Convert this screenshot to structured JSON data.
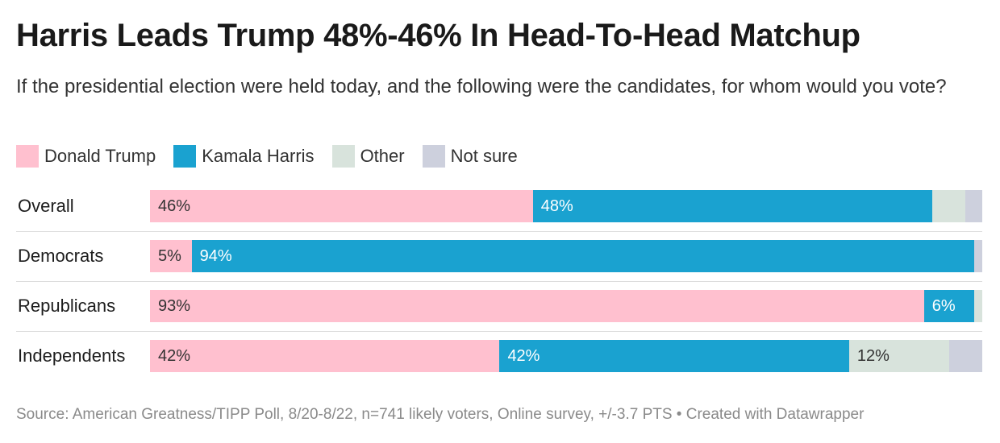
{
  "title": "Harris Leads Trump 48%-46% In Head-To-Head Matchup",
  "subtitle": "If the presidential election were held today, and the following were the candidates, for whom would you vote?",
  "footer": "Source: American Greatness/TIPP Poll, 8/20-8/22, n=741 likely voters, Online survey, +/-3.7 PTS • Created with Datawrapper",
  "colors": {
    "trump": "#ffc0cf",
    "harris": "#1aa2d0",
    "other": "#d8e3dc",
    "not_sure": "#cdd0dd"
  },
  "chart_data": {
    "type": "bar",
    "orientation": "horizontal",
    "stacked": true,
    "categories": [
      "Overall",
      "Democrats",
      "Republicans",
      "Independents"
    ],
    "series": [
      {
        "name": "Donald Trump",
        "values": [
          46,
          5,
          93,
          42
        ],
        "labels": [
          "46%",
          "5%",
          "93%",
          "42%"
        ]
      },
      {
        "name": "Kamala Harris",
        "values": [
          48,
          94,
          6,
          42
        ],
        "labels": [
          "48%",
          "94%",
          "6%",
          "42%"
        ]
      },
      {
        "name": "Other",
        "values": [
          4,
          0,
          1,
          12
        ],
        "labels": [
          "",
          "",
          "",
          "12%"
        ]
      },
      {
        "name": "Not sure",
        "values": [
          2,
          1,
          0,
          4
        ],
        "labels": [
          "",
          "",
          "",
          ""
        ]
      }
    ],
    "legend_position": "top-left",
    "xlim": [
      0,
      100
    ]
  }
}
